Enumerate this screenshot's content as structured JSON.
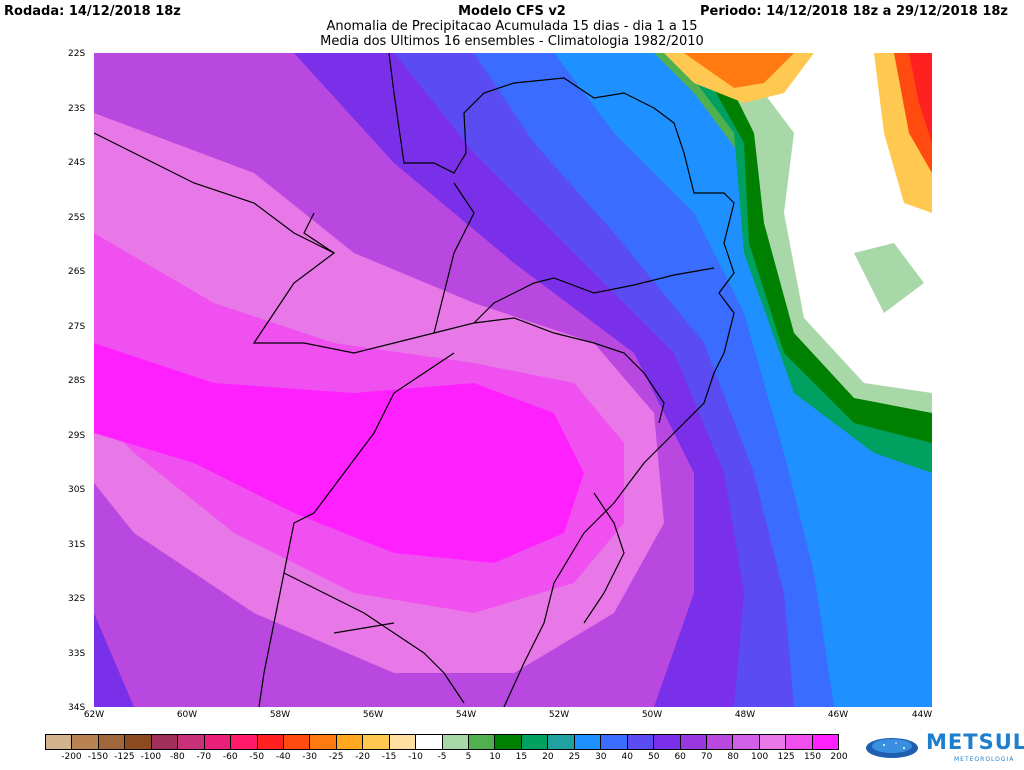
{
  "header": {
    "rodada": "Rodada: 14/12/2018 18z",
    "model": "Modelo CFS v2",
    "subtitle1": "Anomalia de Precipitacao Acumulada 15 dias - dia 1 a 15",
    "subtitle2": "Media dos Ultimos 16 ensembles - Climatologia 1982/2010",
    "periodo": "Periodo: 14/12/2018 18z a 29/12/2018 18z"
  },
  "axes": {
    "lat_labels": [
      "22S",
      "23S",
      "24S",
      "25S",
      "26S",
      "27S",
      "28S",
      "29S",
      "30S",
      "31S",
      "32S",
      "33S",
      "34S"
    ],
    "lon_labels": [
      "62W",
      "60W",
      "58W",
      "56W",
      "54W",
      "52W",
      "50W",
      "48W",
      "46W",
      "44W"
    ]
  },
  "legend": {
    "colors": [
      "#d2b48c",
      "#b98252",
      "#a0683a",
      "#8b4a20",
      "#a0305a",
      "#c8307a",
      "#e8207a",
      "#ff1a6a",
      "#ff2020",
      "#ff4a10",
      "#ff7a10",
      "#ffa820",
      "#ffc850",
      "#ffe0a0",
      "#ffffff",
      "#a8d8a8",
      "#50b050",
      "#008000",
      "#00a060",
      "#20a0a0",
      "#1e90ff",
      "#3a6cff",
      "#5a4cf0",
      "#7a30e8",
      "#9a38e0",
      "#b848e0",
      "#d060e8",
      "#e878e8",
      "#f050f0",
      "#ff20ff"
    ],
    "labels": [
      "-200",
      "-150",
      "-125",
      "-100",
      "-80",
      "-70",
      "-60",
      "-50",
      "-40",
      "-30",
      "-25",
      "-20",
      "-15",
      "-10",
      "-5",
      "5",
      "10",
      "15",
      "20",
      "25",
      "30",
      "40",
      "50",
      "60",
      "70",
      "80",
      "100",
      "125",
      "150",
      "200"
    ]
  },
  "logo": {
    "brand": "METSUL",
    "sub": "METEOROLOGIA",
    "icon": "globe-icon"
  }
}
